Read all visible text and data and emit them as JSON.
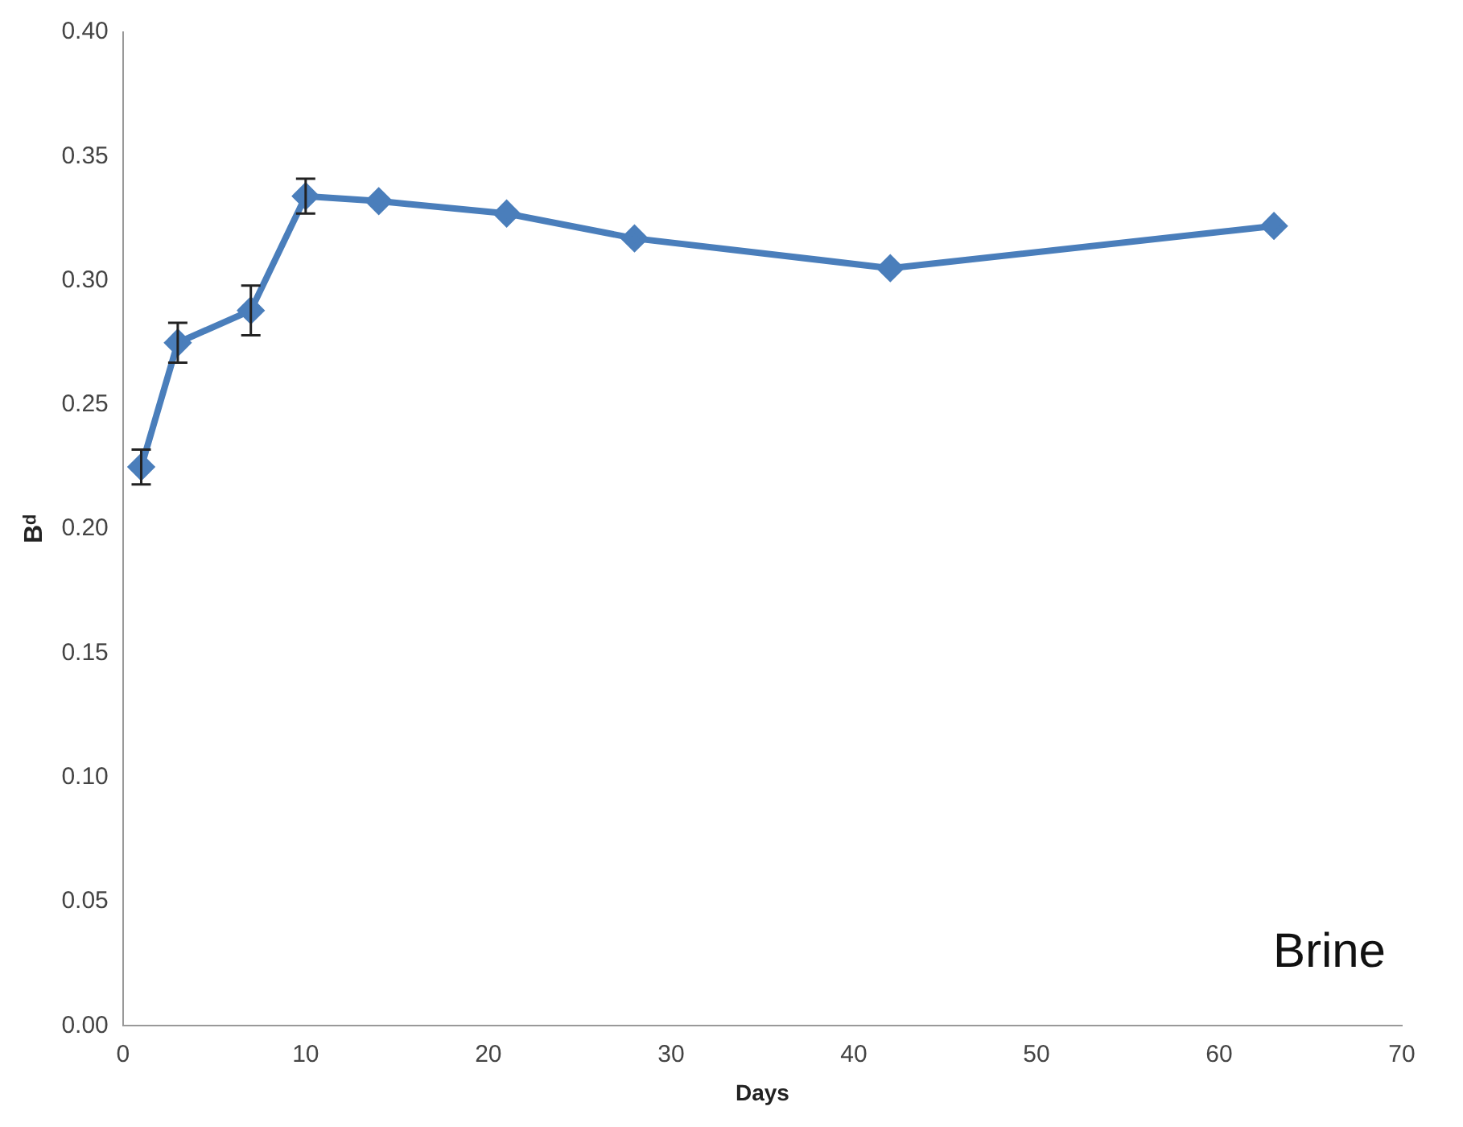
{
  "chart_data": {
    "type": "line",
    "xlabel": "Days",
    "ylabel": "Bᵈ",
    "annotations": [
      "Brine"
    ],
    "x": [
      1,
      3,
      7,
      10,
      14,
      21,
      28,
      42,
      63
    ],
    "series": [
      {
        "color": "#4a7ebb",
        "values": [
          0.225,
          0.275,
          0.288,
          0.334,
          0.332,
          0.327,
          0.317,
          0.305,
          0.322
        ],
        "errors": [
          0.007,
          0.008,
          0.01,
          0.007,
          null,
          null,
          null,
          null,
          null
        ]
      }
    ],
    "xlim": [
      0,
      70
    ],
    "xticks": [
      0,
      10,
      20,
      30,
      40,
      50,
      60,
      70
    ],
    "ylim": [
      0,
      0.4
    ],
    "yticks": [
      {
        "value": 0,
        "label": "0.00"
      },
      0.05,
      {
        "value": 0.1,
        "label": "0.10"
      },
      0.15,
      {
        "value": 0.2,
        "label": "0.20"
      },
      0.25,
      {
        "value": 0.3,
        "label": "0.30"
      },
      0.35,
      {
        "value": 0.4,
        "label": "0.40"
      }
    ],
    "grid": false,
    "legend": false,
    "marker": "diamond",
    "line_style": "solid"
  }
}
